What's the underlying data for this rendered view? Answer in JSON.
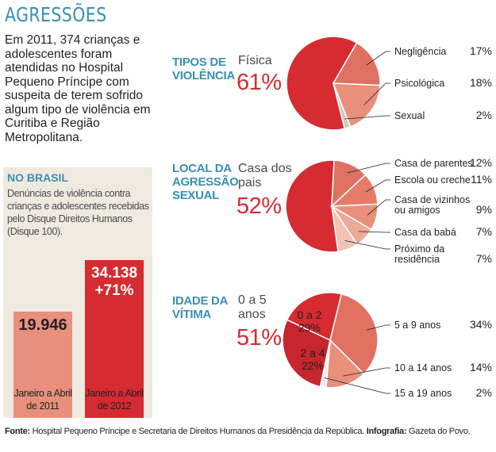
{
  "title": "AGRESSÕES",
  "intro": "Em 2011, 374 crianças e adolescentes foram atendidas no Hospital Pequeno Príncipe com suspeita de terem sofrido algum tipo de violência em Curitiba e Região Metropolitana.",
  "brasil": {
    "title": "NO BRASIL",
    "description": "Denúncias de violência contra crianças e adolescentes recebidas pelo Disque Direitos Humanos (Disque 100)."
  },
  "colors": {
    "blue": "#3a8fb0",
    "red": "#d52b31",
    "salmon": "#e8907c",
    "beige": "#efe9e0"
  },
  "sections": {
    "tipos": {
      "title": "TIPOS DE VIOLÊNCIA",
      "highlight_label": "Física",
      "highlight_pct": "61%"
    },
    "local": {
      "title": "LOCAL DA AGRESSÃO SEXUAL",
      "highlight_label": "Casa dos pais",
      "highlight_pct": "52%"
    },
    "idade": {
      "title": "IDADE DA VÍTIMA",
      "highlight_label": "0 a 5 anos",
      "highlight_pct": "51%"
    }
  },
  "chart_data": [
    {
      "type": "bar",
      "title": "NO BRASIL",
      "categories": [
        "Janeiro a Abril de 2011",
        "Janeiro a Abril de 2012"
      ],
      "values": [
        19946,
        34138
      ],
      "value_labels": [
        "19.946",
        "34.138"
      ],
      "change_label": "+71%",
      "ylim": [
        0,
        36000
      ]
    },
    {
      "type": "pie",
      "title": "TIPOS DE VIOLÊNCIA",
      "slices": [
        {
          "label": "Física",
          "value": 61,
          "display": "61%"
        },
        {
          "label": "Negligência",
          "value": 17,
          "display": "17%"
        },
        {
          "label": "Psicológica",
          "value": 18,
          "display": "18%"
        },
        {
          "label": "Sexual",
          "value": 2,
          "display": "2%"
        }
      ]
    },
    {
      "type": "pie",
      "title": "LOCAL DA AGRESSÃO SEXUAL",
      "slices": [
        {
          "label": "Casa dos pais",
          "value": 52,
          "display": "52%"
        },
        {
          "label": "Casa de parentes",
          "value": 12,
          "display": "12%"
        },
        {
          "label": "Escola ou creche",
          "value": 11,
          "display": "11%"
        },
        {
          "label": "Casa de vizinhos ou amigos",
          "value": 9,
          "display": "9%"
        },
        {
          "label": "Casa da babá",
          "value": 7,
          "display": "7%"
        },
        {
          "label": "Próximo da residência",
          "value": 7,
          "display": "7%"
        }
      ]
    },
    {
      "type": "pie",
      "title": "IDADE DA VÍTIMA",
      "group": {
        "label": "0 a 5 anos",
        "value": 51,
        "display": "51%"
      },
      "slices": [
        {
          "label": "0 a 2",
          "value": 29,
          "display": "29%"
        },
        {
          "label": "2 a 4",
          "value": 22,
          "display": "22%"
        },
        {
          "label": "5 a 9 anos",
          "value": 34,
          "display": "34%"
        },
        {
          "label": "10 a 14 anos",
          "value": 14,
          "display": "14%"
        },
        {
          "label": "15 a 19 anos",
          "value": 2,
          "display": "2%"
        }
      ]
    }
  ],
  "footer": {
    "fonte_label": "Fonte:",
    "fonte_text": " Hospital Pequeno Príncipe e Secretaria de Direitos Humanos da Presidência da República.",
    "info_label": " Infografia:",
    "info_text": " Gazeta do Povo."
  }
}
